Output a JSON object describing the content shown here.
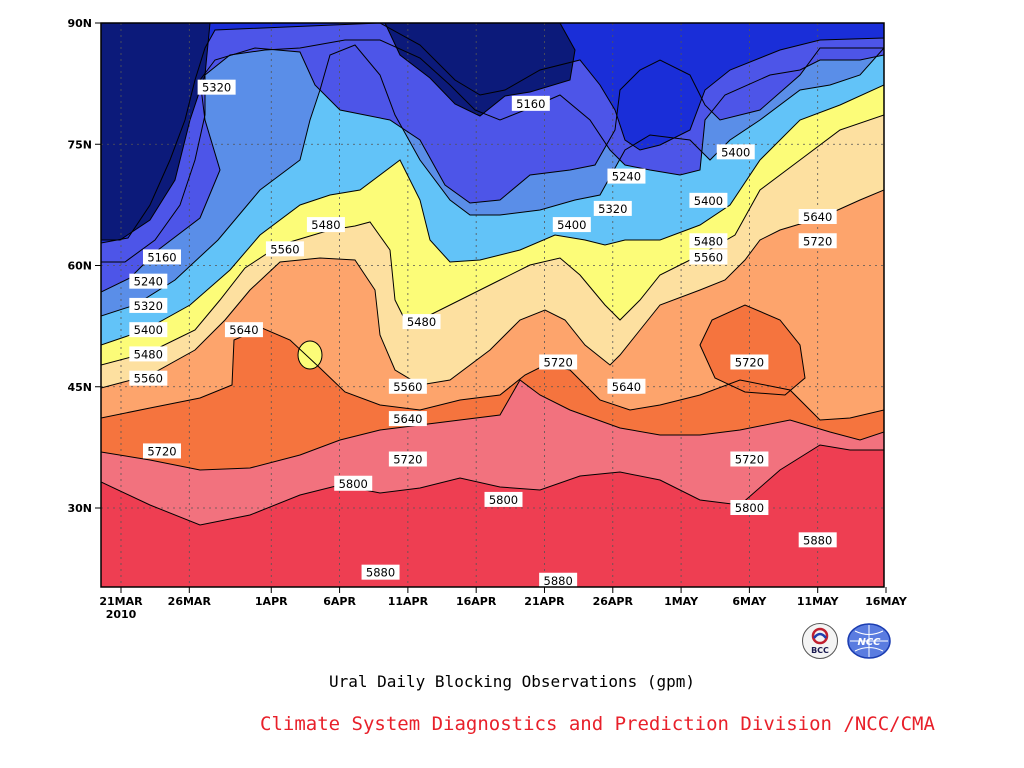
{
  "chart_data": {
    "type": "heatmap",
    "subtype": "filled-contour",
    "title": "Ural Daily Blocking Observations (gpm)",
    "credit": "Climate System Diagnostics and Prediction Division /NCC/CMA",
    "x_dates": [
      "21MAR",
      "26MAR",
      "1APR",
      "6APR",
      "11APR",
      "16APR",
      "21APR",
      "26APR",
      "1MAY",
      "6MAY",
      "11MAY",
      "16MAY"
    ],
    "x_year_label": "2010",
    "y_ticks": [
      "90N",
      "75N",
      "60N",
      "45N",
      "30N"
    ],
    "y_values": [
      90,
      75,
      60,
      45,
      30
    ],
    "ylim": [
      20,
      90
    ],
    "levels": [
      5160,
      5240,
      5320,
      5400,
      5480,
      5560,
      5640,
      5720,
      5800,
      5880
    ],
    "fill_colors": [
      "#0c1a7a",
      "#1a2ed8",
      "#4d55e8",
      "#5a8ee8",
      "#62c3f8",
      "#fcfc78",
      "#fde0a0",
      "#fda46c",
      "#f5743e",
      "#f2727e",
      "#ee3e52"
    ],
    "contour_labels": [
      {
        "text": "5320",
        "lon_date": "28MAR",
        "lat": 82
      },
      {
        "text": "5160",
        "lon_date": "20APR",
        "lat": 80
      },
      {
        "text": "5240",
        "lon_date": "27APR",
        "lat": 71
      },
      {
        "text": "5400",
        "lon_date": "5MAY",
        "lat": 74
      },
      {
        "text": "5400",
        "lon_date": "3MAY",
        "lat": 68
      },
      {
        "text": "5480",
        "lon_date": "5APR",
        "lat": 65
      },
      {
        "text": "5320",
        "lon_date": "26APR",
        "lat": 67
      },
      {
        "text": "5400",
        "lon_date": "23APR",
        "lat": 65
      },
      {
        "text": "5640",
        "lon_date": "11MAY",
        "lat": 66
      },
      {
        "text": "5720",
        "lon_date": "11MAY",
        "lat": 63
      },
      {
        "text": "5560",
        "lon_date": "2APR",
        "lat": 62
      },
      {
        "text": "5480",
        "lon_date": "3MAY",
        "lat": 63
      },
      {
        "text": "5160",
        "lon_date": "24MAR",
        "lat": 61
      },
      {
        "text": "5560",
        "lon_date": "3MAY",
        "lat": 61
      },
      {
        "text": "5240",
        "lon_date": "23MAR",
        "lat": 58
      },
      {
        "text": "5320",
        "lon_date": "23MAR",
        "lat": 55
      },
      {
        "text": "5480",
        "lon_date": "12APR",
        "lat": 53
      },
      {
        "text": "5400",
        "lon_date": "23MAR",
        "lat": 52
      },
      {
        "text": "5640",
        "lon_date": "30MAR",
        "lat": 52
      },
      {
        "text": "5480",
        "lon_date": "23MAR",
        "lat": 49
      },
      {
        "text": "5720",
        "lon_date": "6MAY",
        "lat": 48
      },
      {
        "text": "5720",
        "lon_date": "22APR",
        "lat": 48
      },
      {
        "text": "5560",
        "lon_date": "23MAR",
        "lat": 46
      },
      {
        "text": "5560",
        "lon_date": "11APR",
        "lat": 45
      },
      {
        "text": "5640",
        "lon_date": "27APR",
        "lat": 45
      },
      {
        "text": "5640",
        "lon_date": "11APR",
        "lat": 41
      },
      {
        "text": "5720",
        "lon_date": "24MAR",
        "lat": 37
      },
      {
        "text": "5720",
        "lon_date": "11APR",
        "lat": 36
      },
      {
        "text": "5720",
        "lon_date": "6MAY",
        "lat": 36
      },
      {
        "text": "5800",
        "lon_date": "7APR",
        "lat": 33
      },
      {
        "text": "5800",
        "lon_date": "18APR",
        "lat": 31
      },
      {
        "text": "5800",
        "lon_date": "6MAY",
        "lat": 30
      },
      {
        "text": "5880",
        "lon_date": "11MAY",
        "lat": 26
      },
      {
        "text": "5880",
        "lon_date": "9APR",
        "lat": 22
      },
      {
        "text": "5880",
        "lon_date": "22APR",
        "lat": 21
      }
    ],
    "grid": true,
    "grid_style": "dotted"
  },
  "logos": {
    "left": "BCC",
    "right": "NCC"
  }
}
